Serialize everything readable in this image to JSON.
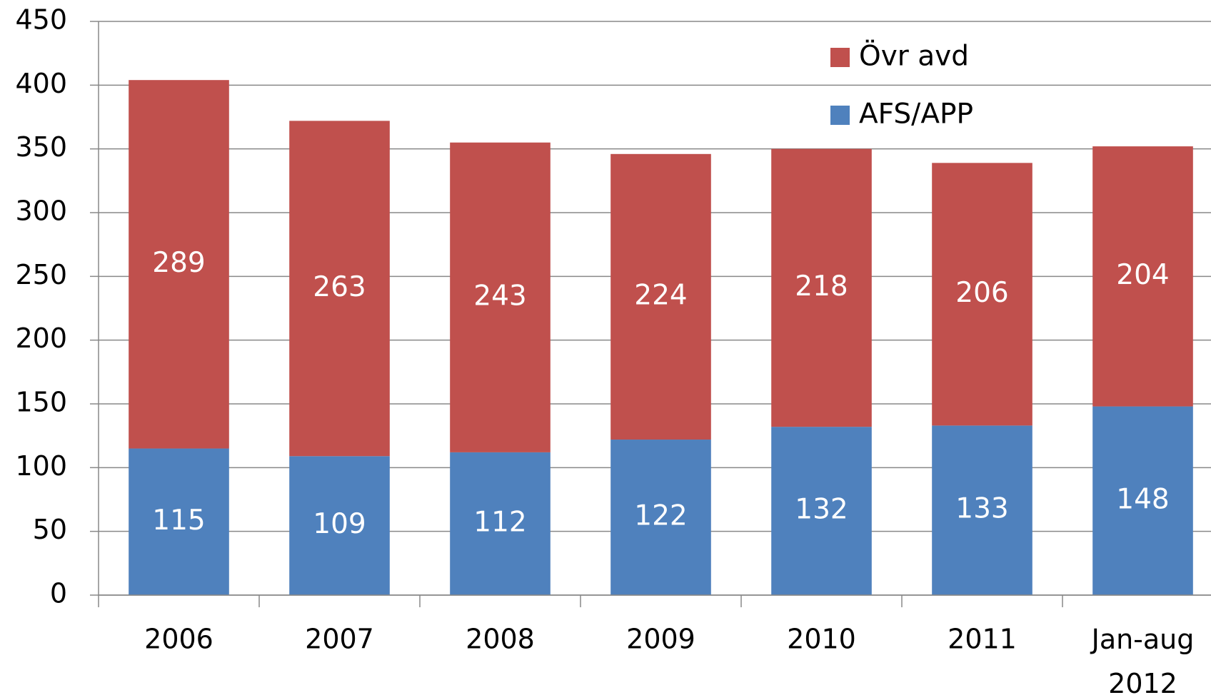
{
  "chart_data": {
    "type": "bar",
    "stacked": true,
    "categories": [
      "2006",
      "2007",
      "2008",
      "2009",
      "2010",
      "2011",
      "Jan-aug 2012"
    ],
    "series": [
      {
        "name": "AFS/APP",
        "color": "#4f81bd",
        "values": [
          115,
          109,
          112,
          122,
          132,
          133,
          148
        ]
      },
      {
        "name": "Övr avd",
        "color": "#c0504d",
        "values": [
          289,
          263,
          243,
          224,
          218,
          206,
          204
        ]
      }
    ],
    "ylim": [
      0,
      450
    ],
    "yticks": [
      0,
      50,
      100,
      150,
      200,
      250,
      300,
      350,
      400,
      450
    ],
    "grid": true,
    "legend": "upper right"
  }
}
